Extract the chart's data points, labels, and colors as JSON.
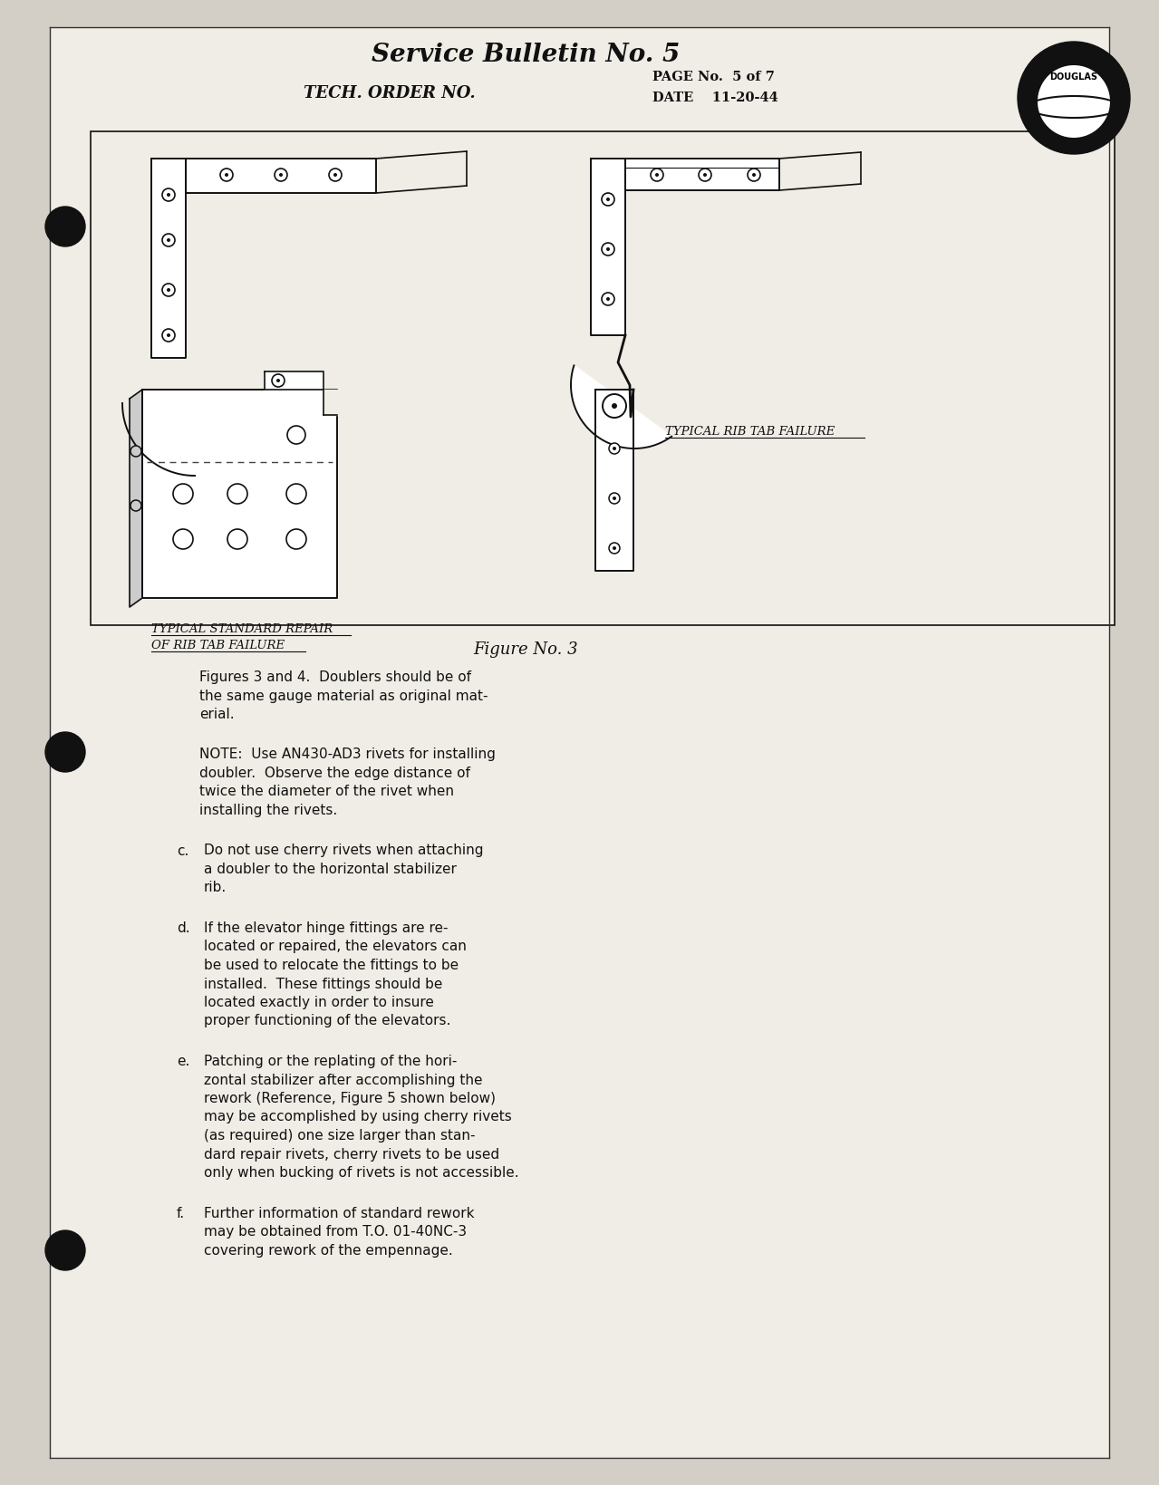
{
  "bg_outer": "#d4cfc6",
  "bg_page": "#f0ede6",
  "title": "Service Bulletin No. 5",
  "subtitle": "TECH. ORDER NO.",
  "page_no": "PAGE No.  5 of 7",
  "date_label": "DATE",
  "date_val": "11-20-44",
  "figure_caption": "Figure No. 3",
  "label_left_1": "TYPICAL STANDARD REPAIR",
  "label_left_2": "OF RIB TAB FAILURE",
  "label_right": "TYPICAL RIB TAB FAILURE",
  "body_paragraphs": [
    {
      "indent": false,
      "label": "",
      "lines": [
        "Figures 3 and 4.  Doublers should be of",
        "the same gauge material as original mat-",
        "erial."
      ]
    },
    {
      "indent": false,
      "label": "",
      "lines": [
        "NOTE:  Use AN430-AD3 rivets for installing",
        "doubler.  Observe the edge distance of",
        "twice the diameter of the rivet when",
        "installing the rivets."
      ]
    },
    {
      "indent": true,
      "label": "c.",
      "lines": [
        "Do not use cherry rivets when attaching",
        "a doubler to the horizontal stabilizer",
        "rib."
      ]
    },
    {
      "indent": true,
      "label": "d.",
      "lines": [
        "If the elevator hinge fittings are re-",
        "located or repaired, the elevators can",
        "be used to relocate the fittings to be",
        "installed.  These fittings should be",
        "located exactly in order to insure",
        "proper functioning of the elevators."
      ]
    },
    {
      "indent": true,
      "label": "e.",
      "lines": [
        "Patching or the replating of the hori-",
        "zontal stabilizer after accomplishing the",
        "rework (Reference, Figure 5 shown below)",
        "may be accomplished by using cherry rivets",
        "(as required) one size larger than stan-",
        "dard repair rivets, cherry rivets to be used",
        "only when bucking of rivets is not accessible."
      ]
    },
    {
      "indent": true,
      "label": "f.",
      "lines": [
        "Further information of standard rework",
        "may be obtained from T.O. 01-40NC-3",
        "covering rework of the empennage."
      ]
    }
  ]
}
